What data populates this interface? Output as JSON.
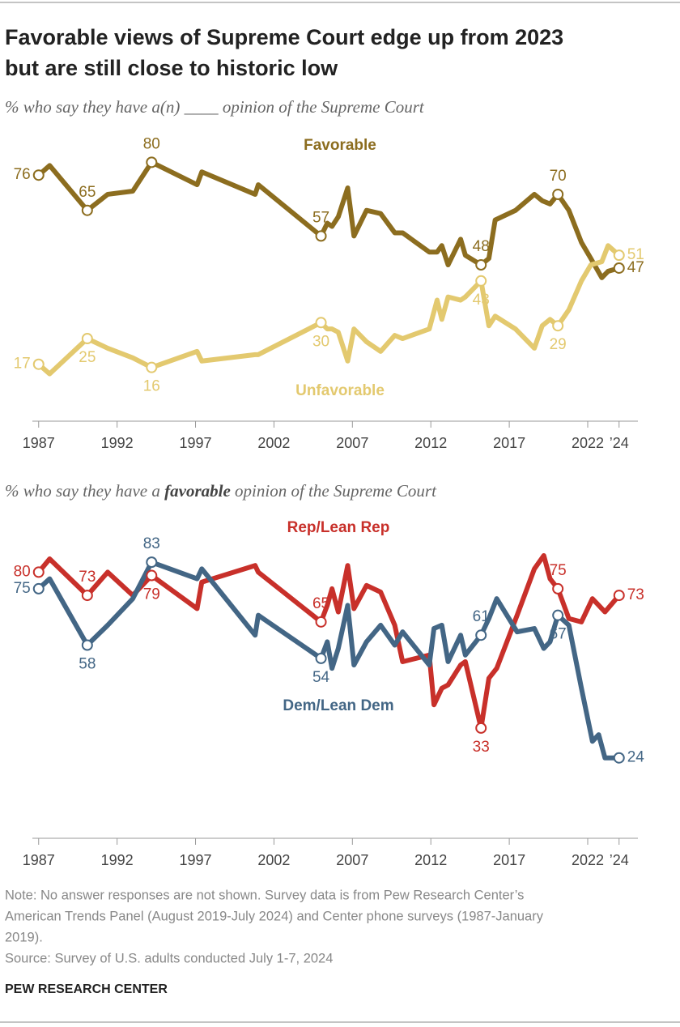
{
  "title": [
    "Favorable views of Supreme Court edge up from 2023",
    "but are still close to historic low"
  ],
  "note": [
    "Note: No answer responses are not shown. Survey data is from Pew Research Center’s",
    "American Trends Panel (August 2019-July 2024) and Center phone surveys (1987-January",
    "2019)."
  ],
  "source": "Source: Survey of U.S. adults conducted July 1-7, 2024",
  "footer": "PEW RESEARCH CENTER",
  "chart_data": [
    {
      "type": "line",
      "subtitle": [
        "% who say they have a(n) ____ opinion of the Supreme Court"
      ],
      "x": [
        1987.0,
        1987.7,
        1990.1,
        1991.4,
        1993.0,
        1994.2,
        1997.1,
        1997.4,
        2000.8,
        2001.0,
        2005.0,
        2005.4,
        2005.7,
        2006.1,
        2006.7,
        2007.1,
        2007.9,
        2008.8,
        2009.7,
        2010.2,
        2011.9,
        2012.4,
        2012.7,
        2013.1,
        2013.9,
        2014.2,
        2015.2,
        2015.7,
        2016.1,
        2017.4,
        2018.6,
        2019.1,
        2019.6,
        2020.1,
        2020.8,
        2021.6,
        2022.2,
        2022.9,
        2023.3,
        2024.0
      ],
      "series": [
        {
          "name": "Favorable",
          "color": "#8c6d1f",
          "values": [
            76,
            79,
            65,
            70,
            71,
            80,
            73,
            77,
            70,
            73,
            57,
            61,
            60,
            63,
            72,
            57,
            65,
            64,
            58,
            58,
            52,
            52,
            54,
            48,
            56,
            51,
            48,
            50,
            62,
            65,
            70,
            68,
            67,
            70,
            65,
            55,
            50,
            44,
            46,
            47
          ]
        },
        {
          "name": "Unfavorable",
          "color": "#e3c96f",
          "values": [
            17,
            14,
            25,
            22,
            19,
            16,
            21,
            18,
            20,
            20,
            30,
            28,
            28,
            27,
            18,
            28,
            24,
            21,
            26,
            25,
            28,
            37,
            31,
            38,
            37,
            38,
            43,
            29,
            32,
            28,
            22,
            29,
            31,
            29,
            34,
            43,
            48,
            49,
            54,
            51
          ]
        }
      ],
      "markers": [
        0,
        2,
        5,
        10,
        26,
        33,
        39
      ],
      "xlim": [
        1986.6,
        2025.2
      ],
      "ylim": [
        0,
        95
      ],
      "xticks": [
        1987,
        1992,
        1997,
        2002,
        2007,
        2012,
        2017,
        2022,
        {
          "value": 2024,
          "label": "’24"
        }
      ]
    },
    {
      "type": "line",
      "subtitle": [
        "% who say they have a ",
        "favorable",
        " opinion of the Supreme Court"
      ],
      "x": [
        1987.0,
        1987.7,
        1990.1,
        1991.4,
        1993.0,
        1994.2,
        1997.1,
        1997.4,
        2000.8,
        2001.0,
        2005.0,
        2005.4,
        2005.7,
        2006.1,
        2006.7,
        2007.1,
        2007.9,
        2008.8,
        2009.7,
        2010.2,
        2011.9,
        2012.2,
        2012.7,
        2013.1,
        2013.9,
        2014.2,
        2015.2,
        2015.7,
        2016.2,
        2017.5,
        2018.6,
        2019.2,
        2019.6,
        2020.1,
        2020.8,
        2021.6,
        2022.3,
        2022.7,
        2023.1,
        2024.0
      ],
      "series": [
        {
          "name": "Rep/Lean Rep",
          "color": "#c8302a",
          "values": [
            80,
            84,
            73,
            80,
            73,
            79,
            69,
            77,
            82,
            80,
            65,
            70,
            75,
            68,
            82,
            69,
            76,
            74,
            64,
            53,
            55,
            40,
            45,
            46,
            52,
            53,
            33,
            48,
            51,
            67,
            81,
            85,
            78,
            75,
            66,
            65,
            72,
            70,
            68,
            73
          ]
        },
        {
          "name": "Dem/Lean Dem",
          "color": "#436685",
          "values": [
            75,
            78,
            58,
            64,
            72,
            83,
            78,
            81,
            61,
            67,
            54,
            59,
            51,
            57,
            70,
            52,
            59,
            64,
            58,
            62,
            52,
            63,
            64,
            53,
            61,
            55,
            61,
            66,
            72,
            62,
            63,
            57,
            59,
            67,
            64,
            45,
            29,
            31,
            24,
            24
          ]
        }
      ],
      "markers": [
        0,
        2,
        5,
        10,
        26,
        33,
        39
      ],
      "xlim": [
        1986.6,
        2025.2
      ],
      "ylim": [
        0,
        95
      ],
      "xticks": [
        1987,
        1992,
        1997,
        2002,
        2007,
        2012,
        2017,
        2022,
        {
          "value": 2024,
          "label": "’24"
        }
      ]
    }
  ]
}
